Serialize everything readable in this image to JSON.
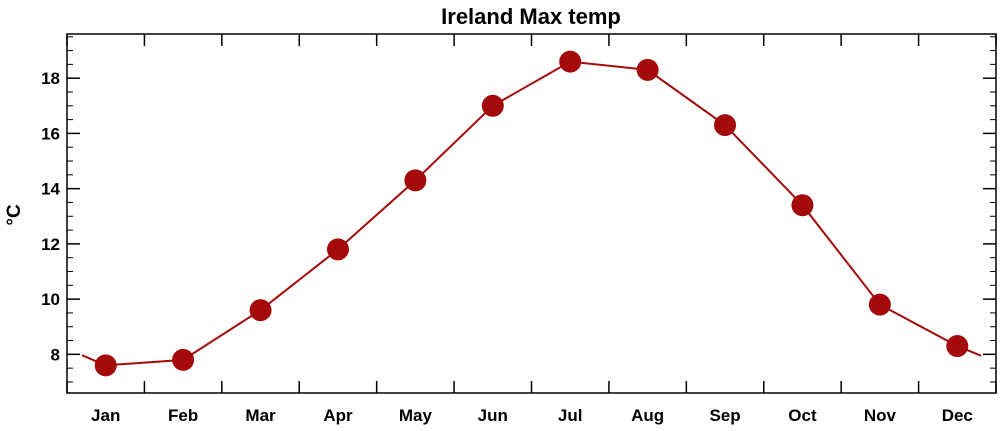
{
  "chart_data": {
    "type": "line",
    "title": "Ireland Max temp",
    "xlabel": "",
    "ylabel": "°C",
    "categories": [
      "Jan",
      "Feb",
      "Mar",
      "Apr",
      "May",
      "Jun",
      "Jul",
      "Aug",
      "Sep",
      "Oct",
      "Nov",
      "Dec"
    ],
    "series": [
      {
        "values": [
          7.6,
          7.8,
          9.6,
          11.8,
          14.3,
          17.0,
          18.6,
          18.3,
          16.3,
          13.4,
          9.8,
          8.3
        ],
        "color": "#a50a0a",
        "marker": "filled-circle"
      }
    ],
    "edge_values": {
      "left": 7.97,
      "right": 7.95
    },
    "ylim": [
      6.6,
      19.6
    ],
    "yticks": [
      8,
      10,
      12,
      14,
      16,
      18
    ],
    "grid": false
  }
}
